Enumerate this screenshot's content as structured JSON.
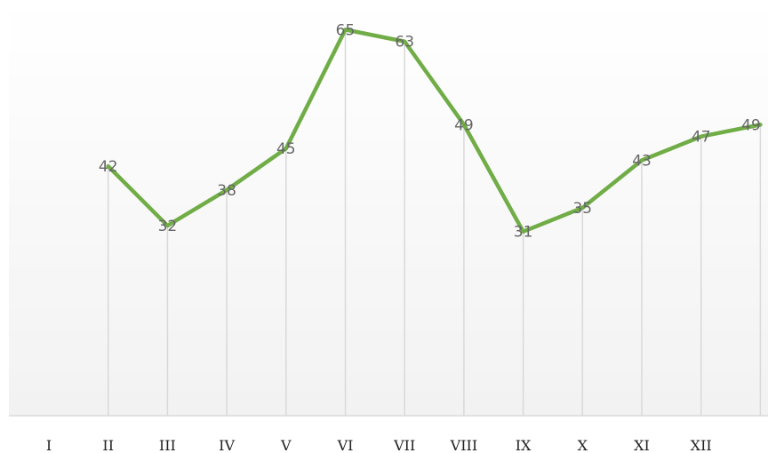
{
  "chart_data": {
    "type": "line",
    "categories": [
      "I",
      "II",
      "III",
      "IV",
      "V",
      "VI",
      "VII",
      "VIII",
      "IX",
      "X",
      "XI",
      "XII"
    ],
    "series": [
      {
        "values": [
          42,
          32,
          38,
          45,
          65,
          63,
          49,
          31,
          35,
          43,
          47,
          49
        ]
      }
    ],
    "ylim": [
      0,
      67
    ],
    "grid": "vertical drop lines at each point",
    "legend": "none",
    "colors": {
      "line": "#70ad47",
      "drop_line": "#d9d9d9",
      "baseline": "#d9d9d9",
      "plot_gradient_top": "#ffffff",
      "plot_gradient_bottom": "#f2f2f2"
    }
  }
}
